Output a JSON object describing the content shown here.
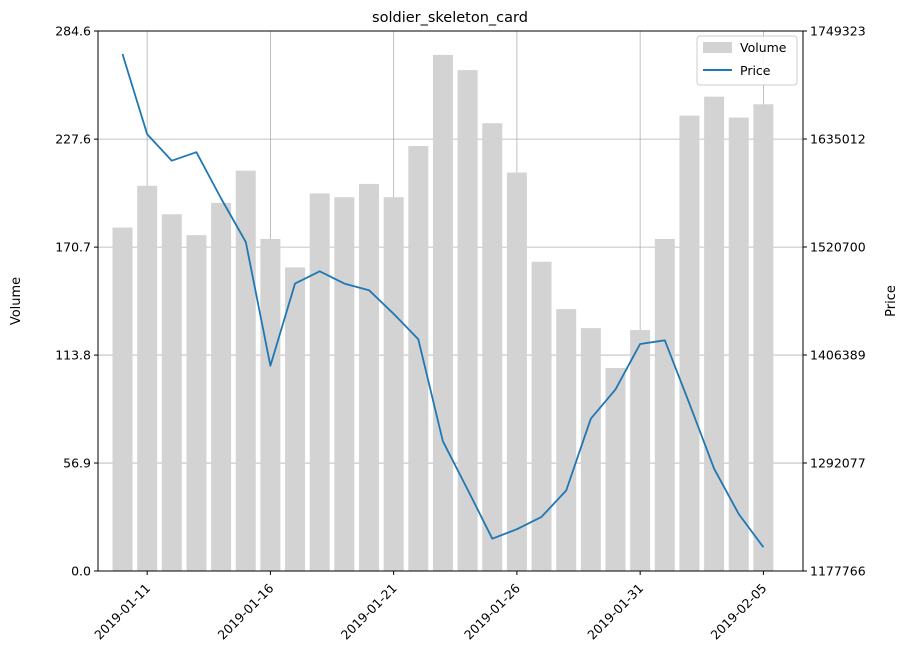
{
  "chart_data": {
    "type": "bar",
    "title": "soldier_skeleton_card",
    "xlabel": "",
    "ylabel": "Volume",
    "y2label": "Price",
    "dates": [
      "2019-01-10",
      "2019-01-11",
      "2019-01-12",
      "2019-01-13",
      "2019-01-14",
      "2019-01-15",
      "2019-01-16",
      "2019-01-17",
      "2019-01-18",
      "2019-01-19",
      "2019-01-20",
      "2019-01-21",
      "2019-01-22",
      "2019-01-23",
      "2019-01-24",
      "2019-01-25",
      "2019-01-26",
      "2019-01-27",
      "2019-01-28",
      "2019-01-29",
      "2019-01-30",
      "2019-01-31",
      "2019-02-01",
      "2019-02-02",
      "2019-02-03",
      "2019-02-04",
      "2019-02-05"
    ],
    "xticks": [
      "2019-01-11",
      "2019-01-16",
      "2019-01-21",
      "2019-01-26",
      "2019-01-31",
      "2019-02-05"
    ],
    "ylim": [
      0,
      284.6
    ],
    "yticks": [
      "0.0",
      "56.9",
      "113.8",
      "170.7",
      "227.6",
      "284.6"
    ],
    "y2lim": [
      1177766,
      1749323
    ],
    "y2ticks": [
      "1177766",
      "1292077",
      "1406389",
      "1520700",
      "1635012",
      "1749323"
    ],
    "grid": true,
    "legend_position": "top-right",
    "series": [
      {
        "name": "Volume",
        "kind": "bar",
        "axis": "left",
        "color": "#d3d3d3",
        "values": [
          181,
          203,
          188,
          177,
          194,
          211,
          175,
          160,
          199,
          197,
          204,
          197,
          224,
          272,
          264,
          236,
          210,
          163,
          138,
          128,
          107,
          127,
          175,
          240,
          250,
          239,
          246
        ]
      },
      {
        "name": "Price",
        "kind": "line",
        "axis": "right",
        "color": "#1f77b4",
        "values": [
          1725000,
          1640000,
          1612000,
          1621000,
          1572000,
          1526000,
          1395000,
          1482000,
          1495000,
          1482000,
          1475000,
          1450000,
          1423000,
          1315000,
          1264000,
          1212000,
          1222000,
          1235000,
          1263000,
          1339000,
          1370000,
          1418000,
          1422000,
          1355000,
          1286000,
          1238000,
          1203000
        ]
      }
    ]
  }
}
